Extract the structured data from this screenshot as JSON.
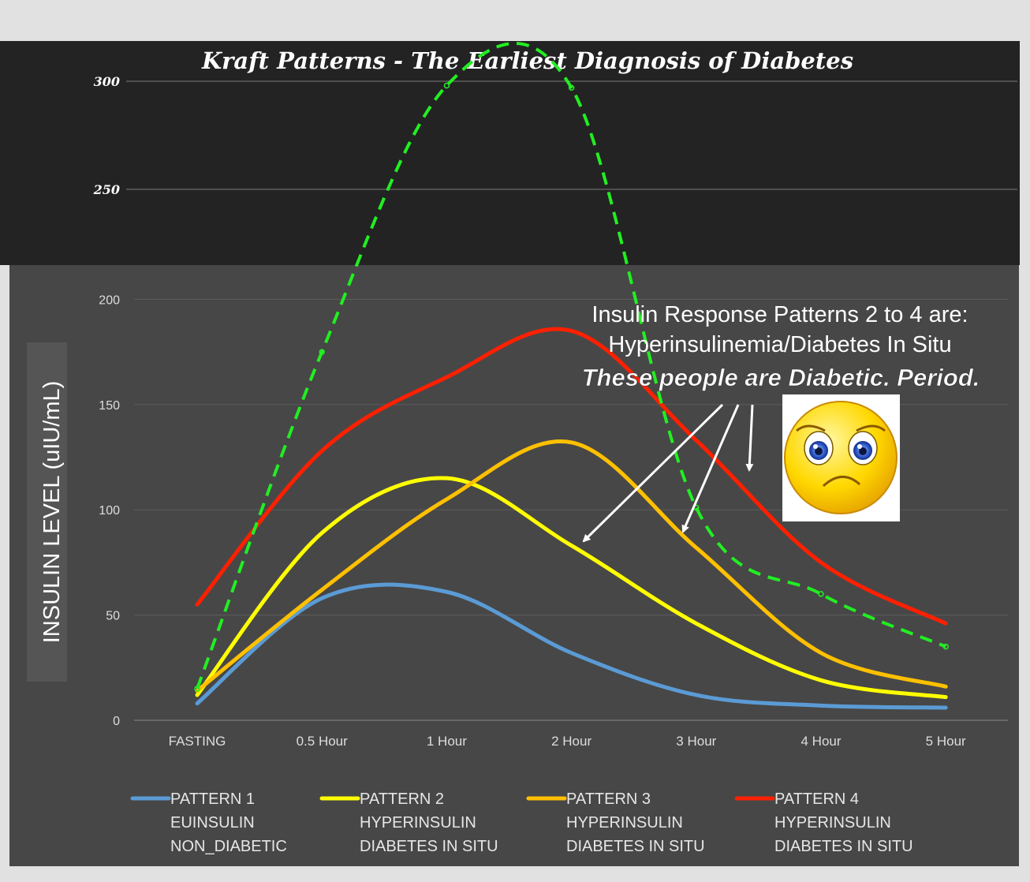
{
  "chart_data": {
    "type": "line",
    "title": "Kraft Patterns - The Earliest Diagnosis of Diabetes",
    "ylabel": "INSULIN LEVEL (uIU/mL)",
    "xlabel": "",
    "categories": [
      "FASTING",
      "0.5 Hour",
      "1 Hour",
      "2 Hour",
      "3 Hour",
      "4 Hour",
      "5 Hour"
    ],
    "ylim": [
      0,
      300
    ],
    "yticks": [
      0,
      50,
      100,
      150,
      200,
      250,
      300
    ],
    "grid": true,
    "legend_position": "bottom",
    "series": [
      {
        "name": "PATTERN 1",
        "subtitle_1": "EUINSULIN",
        "subtitle_2": "NON_DIABETIC",
        "color": "#5b9bd5",
        "values": [
          8,
          58,
          61,
          32,
          12,
          7,
          6
        ]
      },
      {
        "name": "PATTERN 2",
        "subtitle_1": "HYPERINSULIN",
        "subtitle_2": "DIABETES IN SITU",
        "color": "#ffff00",
        "values": [
          12,
          89,
          115,
          83,
          46,
          19,
          11
        ]
      },
      {
        "name": "PATTERN 3",
        "subtitle_1": "HYPERINSULIN",
        "subtitle_2": "DIABETES IN SITU",
        "color": "#ffc000",
        "values": [
          14,
          62,
          105,
          132,
          82,
          32,
          16
        ]
      },
      {
        "name": "PATTERN 4",
        "subtitle_1": "HYPERINSULIN",
        "subtitle_2": "DIABETES IN SITU",
        "color": "#ff2000",
        "values": [
          55,
          128,
          163,
          185,
          133,
          75,
          46
        ]
      }
    ],
    "overlay_series": {
      "style": "dashed",
      "color": "#22ee22",
      "values": [
        15,
        175,
        298,
        297,
        101,
        60,
        35
      ]
    },
    "annotations": {
      "line1": "Insulin Response Patterns 2 to 4 are:",
      "line2": "Hyperinsulinemia/Diabetes In Situ",
      "line3": "These people are Diabetic. Period."
    },
    "icons": {
      "sad_face": "sad-face-icon"
    }
  }
}
